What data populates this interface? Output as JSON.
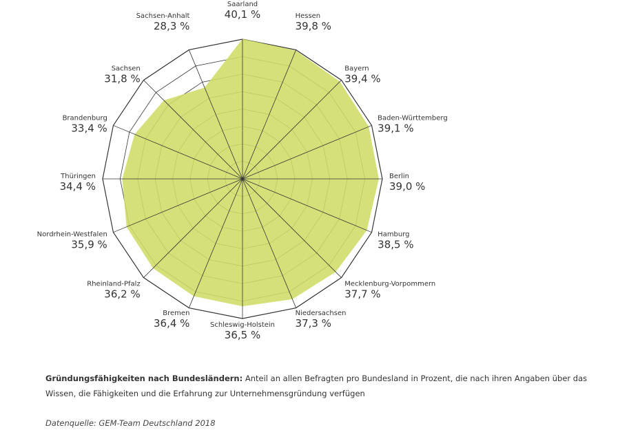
{
  "chart_data": {
    "type": "radar",
    "title": "",
    "unit": "%",
    "r_range": [
      0,
      40
    ],
    "grid_rings": 8,
    "categories": [
      "Saarland",
      "Hessen",
      "Bayern",
      "Baden-Württemberg",
      "Berlin",
      "Hamburg",
      "Mecklenburg-Vorpommern",
      "Niedersachsen",
      "Schleswig-Holstein",
      "Bremen",
      "Rheinland-Pfalz",
      "Nordrhein-Westfalen",
      "Thüringen",
      "Brandenburg",
      "Sachsen",
      "Sachsen-Anhalt"
    ],
    "values": [
      40.1,
      39.8,
      39.4,
      39.1,
      39.0,
      38.5,
      37.7,
      37.3,
      36.5,
      36.4,
      36.2,
      35.9,
      34.4,
      33.4,
      31.8,
      28.3
    ],
    "value_labels": [
      "40,1 %",
      "39,8 %",
      "39,4 %",
      "39,1 %",
      "39,0 %",
      "38,5 %",
      "37,7 %",
      "37,3 %",
      "36,5 %",
      "36,4 %",
      "36,2 %",
      "35,9 %",
      "34,4 %",
      "33,4 %",
      "31,8 %",
      "28,3 %"
    ],
    "fill_color": "#cfdc66",
    "grid_color": "#333333"
  },
  "caption": {
    "bold": "Gründungsfähigkeiten nach Bundesländern:",
    "text": " Anteil an allen Befragten pro Bundesland in Prozent, die nach ihren Angaben über das Wissen, die Fähigkeiten und die Erfahrung zur Unternehmensgründung verfügen"
  },
  "source": "Datenquelle: GEM-Team Deutschland 2018"
}
